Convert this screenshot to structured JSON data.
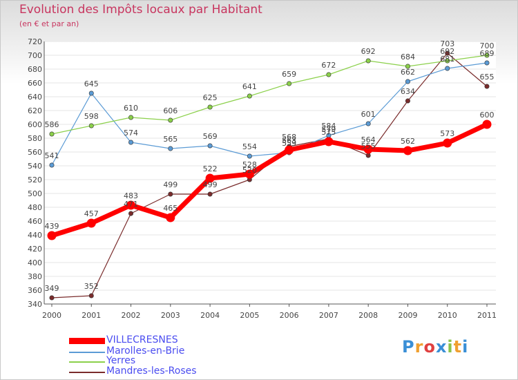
{
  "chart_data": {
    "type": "line",
    "title": "Evolution des Impôts locaux par Habitant",
    "subtitle": "(en € et par an)",
    "xlabel": "",
    "ylabel": "",
    "categories": [
      "2000",
      "2001",
      "2002",
      "2003",
      "2004",
      "2005",
      "2006",
      "2007",
      "2008",
      "2009",
      "2010",
      "2011"
    ],
    "ylim": [
      340,
      720
    ],
    "yticks": [
      340,
      360,
      380,
      400,
      420,
      440,
      460,
      480,
      500,
      520,
      540,
      560,
      580,
      600,
      620,
      640,
      660,
      680,
      700,
      720
    ],
    "series": [
      {
        "name": "VILLECRESNES",
        "color": "#ff0000",
        "values": [
          439,
          457,
          483,
          465,
          522,
          528,
          563,
          575,
          564,
          562,
          573,
          600
        ],
        "labels": [
          "439",
          "457",
          "483",
          "465",
          "522",
          "528",
          "563",
          "575",
          "564",
          "562",
          "573",
          "600"
        ]
      },
      {
        "name": "Marolles-en-Brie",
        "color": "#5b9bd5",
        "values": [
          541,
          645,
          574,
          565,
          569,
          554,
          559,
          584,
          601,
          662,
          681,
          689
        ],
        "labels": [
          "541",
          "645",
          "574",
          "565",
          "569",
          "554",
          "559",
          "584",
          "601",
          "662",
          "681",
          "689"
        ]
      },
      {
        "name": "Yerres",
        "color": "#8bd04a",
        "values": [
          586,
          598,
          610,
          606,
          625,
          641,
          659,
          672,
          692,
          684,
          692,
          700
        ],
        "labels": [
          "586",
          "598",
          "610",
          "606",
          "625",
          "641",
          "659",
          "672",
          "692",
          "684",
          "692",
          "700"
        ]
      },
      {
        "name": "Mandres-les-Roses",
        "color": "#7a2c2c",
        "values": [
          349,
          352,
          471,
          499,
          499,
          520,
          568,
          579,
          555,
          634,
          703,
          655
        ],
        "labels": [
          "349",
          "352",
          "471",
          "499",
          "499",
          "520",
          "568",
          "579",
          "555",
          "634",
          "703",
          "655"
        ]
      }
    ],
    "legend_position": "bottom-left",
    "grid": true
  },
  "brand": {
    "logo_text": "Proxiti"
  }
}
